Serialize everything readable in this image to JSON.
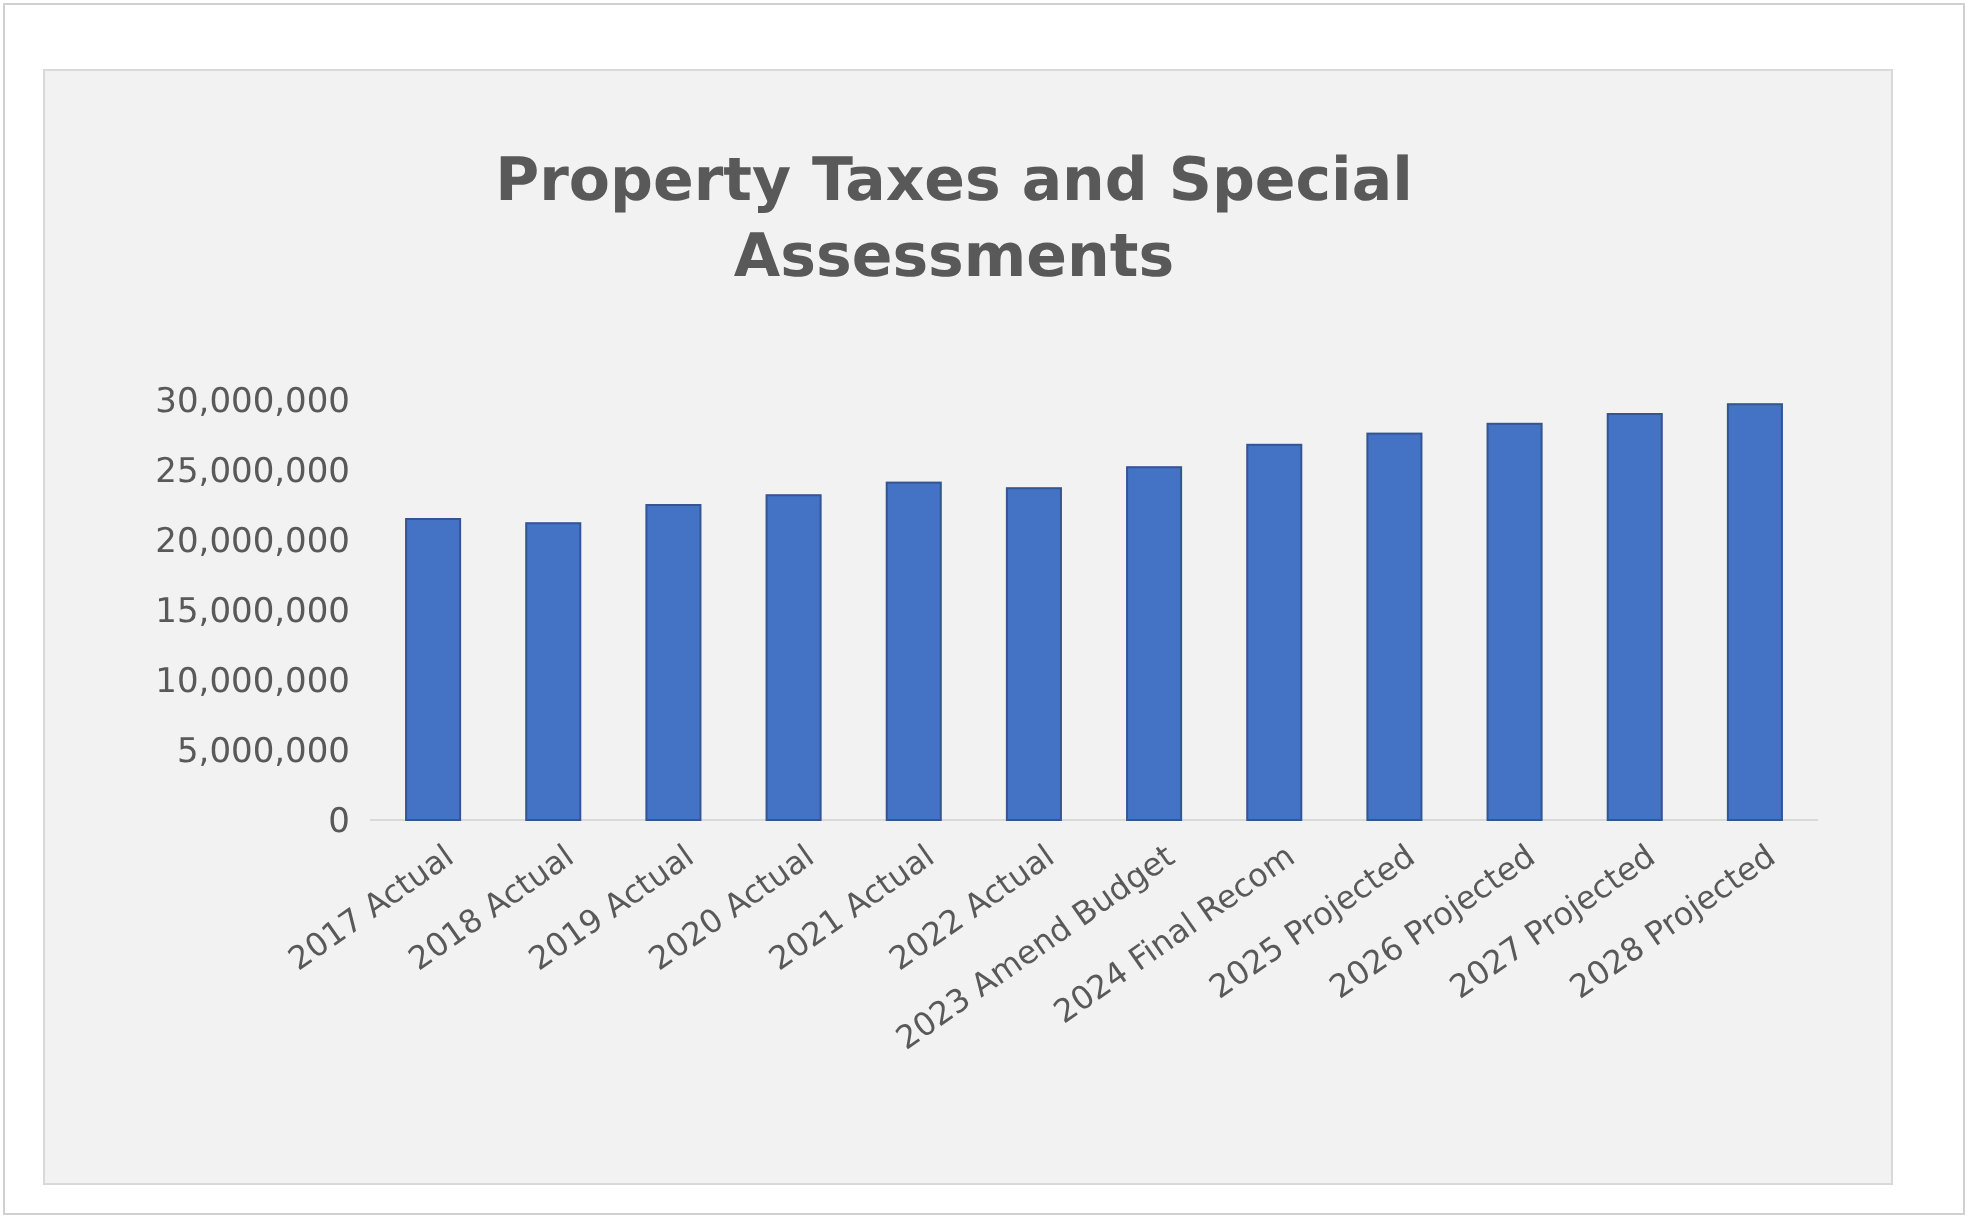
{
  "chart_data": {
    "type": "bar",
    "title": "Property Taxes and Special Assessments",
    "categories": [
      "2017 Actual",
      "2018 Actual",
      "2019 Actual",
      "2020 Actual",
      "2021 Actual",
      "2022 Actual",
      "2023 Amend Budget",
      "2024 Final Recom",
      "2025 Projected",
      "2026 Projected",
      "2027 Projected",
      "2028 Projected"
    ],
    "values": [
      21500000,
      21200000,
      22500000,
      23200000,
      24100000,
      23700000,
      25200000,
      26800000,
      27600000,
      28300000,
      29000000,
      29700000
    ],
    "color": "#4472c4",
    "ylim": [
      0,
      30000000
    ],
    "yticks": [
      {
        "value": 0,
        "label": "0"
      },
      {
        "value": 5000000,
        "label": "5,000,000"
      },
      {
        "value": 10000000,
        "label": "10,000,000"
      },
      {
        "value": 15000000,
        "label": "15,000,000"
      },
      {
        "value": 20000000,
        "label": "20,000,000"
      },
      {
        "value": 25000000,
        "label": "25,000,000"
      },
      {
        "value": 30000000,
        "label": "30,000,000"
      }
    ],
    "grid": false
  }
}
